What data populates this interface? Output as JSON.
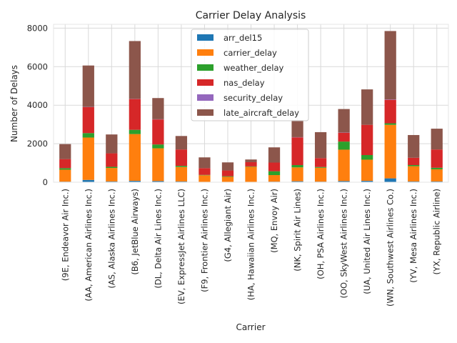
{
  "chart_data": {
    "type": "bar",
    "stacked": true,
    "title": "Carrier Delay Analysis",
    "xlabel": "Carrier",
    "ylabel": "Number of Delays",
    "ylim": [
      0,
      8200
    ],
    "yticks": [
      0,
      2000,
      4000,
      6000,
      8000
    ],
    "grid": true,
    "legend_position": "top-center",
    "categories": [
      "(9E, Endeavor Air Inc.)",
      "(AA, American Airlines Inc.)",
      "(AS, Alaska Airlines Inc.)",
      "(B6, JetBlue Airways)",
      "(DL, Delta Air Lines Inc.)",
      "(EV, ExpressJet Airlines LLC)",
      "(F9, Frontier Airlines Inc.)",
      "(G4, Allegiant Air)",
      "(HA, Hawaiian Airlines Inc.)",
      "(MQ, Envoy Air)",
      "(NK, Spirit Air Lines)",
      "(OH, PSA Airlines Inc.)",
      "(OO, SkyWest Airlines Inc.)",
      "(UA, United Air Lines Inc.)",
      "(WN, Southwest Airlines Co.)",
      "(YV, Mesa Airlines Inc.)",
      "(YX, Republic Airline)"
    ],
    "series": [
      {
        "name": "arr_del15",
        "color": "#1f77b4",
        "values": [
          30,
          120,
          40,
          70,
          60,
          40,
          20,
          20,
          20,
          30,
          50,
          30,
          60,
          70,
          200,
          40,
          40
        ]
      },
      {
        "name": "carrier_delay",
        "color": "#ff7f0e",
        "values": [
          620,
          2200,
          700,
          2430,
          1700,
          750,
          340,
          260,
          780,
          340,
          720,
          720,
          1630,
          1100,
          2780,
          790,
          630
        ]
      },
      {
        "name": "weather_delay",
        "color": "#2ca02c",
        "values": [
          80,
          230,
          60,
          220,
          200,
          60,
          20,
          30,
          20,
          200,
          120,
          40,
          420,
          240,
          80,
          60,
          80
        ]
      },
      {
        "name": "nas_delay",
        "color": "#d62728",
        "values": [
          470,
          1350,
          700,
          1600,
          1300,
          850,
          350,
          300,
          220,
          450,
          1440,
          460,
          460,
          1570,
          1220,
          380,
          950
        ]
      },
      {
        "name": "security_delay",
        "color": "#9467bd",
        "values": [
          0,
          10,
          0,
          10,
          10,
          0,
          0,
          0,
          0,
          0,
          10,
          0,
          10,
          0,
          20,
          0,
          0
        ]
      },
      {
        "name": "late_aircraft_delay",
        "color": "#8c564b",
        "values": [
          780,
          2150,
          980,
          3000,
          1100,
          700,
          560,
          420,
          140,
          790,
          890,
          1350,
          1220,
          1840,
          3550,
          1180,
          1080
        ]
      }
    ]
  },
  "colors": {
    "background": "#ffffff",
    "plot_background": "#ffffff",
    "grid": "#d9d9d9",
    "axis_edge": "#e6e6e6",
    "text": "#262626"
  }
}
